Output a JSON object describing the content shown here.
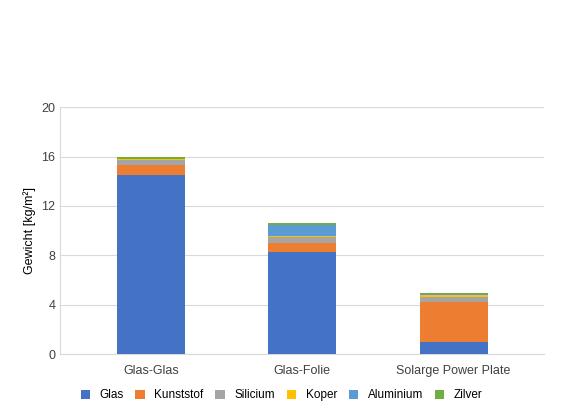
{
  "chart_data": {
    "type": "bar",
    "stacked": true,
    "grid": true,
    "legend": "lower center",
    "y_label": "Gewicht [kg/m²]",
    "categories": [
      "Glas-Glas",
      "Glas-Folie",
      "Solarge Power Plate"
    ],
    "ylim": [
      0,
      20
    ],
    "yticks": [
      0,
      4,
      8,
      12,
      16,
      20
    ],
    "series": [
      {
        "name": "Glas",
        "color": "#4472c4",
        "values": [
          14.5,
          8.3,
          1.0
        ]
      },
      {
        "name": "Kunststof",
        "color": "#ed7d31",
        "values": [
          0.8,
          0.7,
          3.2
        ]
      },
      {
        "name": "Silicium",
        "color": "#a5a5a5",
        "values": [
          0.4,
          0.5,
          0.4
        ]
      },
      {
        "name": "Koper",
        "color": "#ffc000",
        "values": [
          0.1,
          0.1,
          0.2
        ]
      },
      {
        "name": "Aluminium",
        "color": "#5b9bd5",
        "values": [
          0.0,
          0.9,
          0.1
        ]
      },
      {
        "name": "Zilver",
        "color": "#70ad47",
        "values": [
          0.2,
          0.1,
          0.1
        ]
      }
    ]
  }
}
